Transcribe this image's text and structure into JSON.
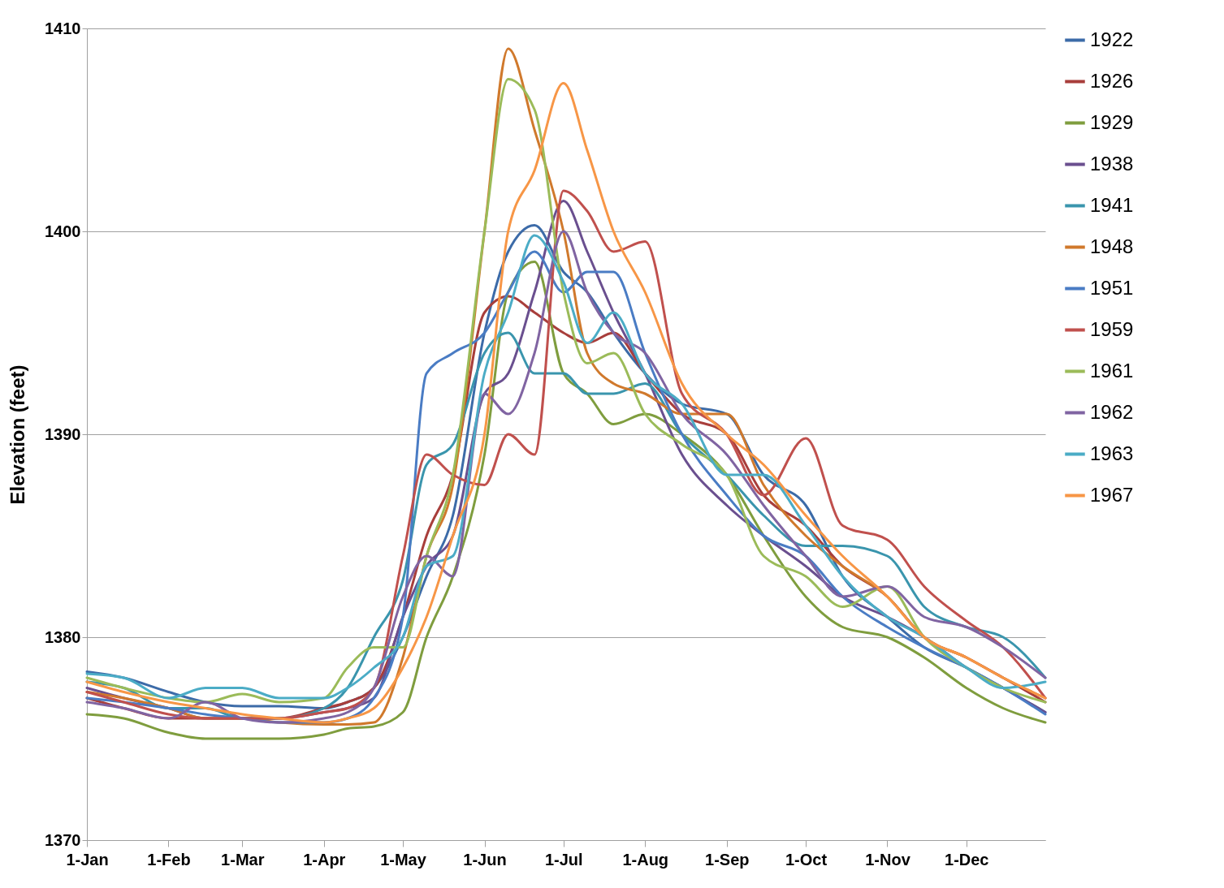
{
  "chart_data": {
    "type": "line",
    "ylabel": "Elevation  (feet)",
    "x": [
      "--01-01",
      "--01-15",
      "--02-01",
      "--02-15",
      "--03-01",
      "--03-15",
      "--04-01",
      "--04-10",
      "--04-20",
      "--05-01",
      "--05-10",
      "--05-20",
      "--06-01",
      "--06-10",
      "--06-20",
      "--07-01",
      "--07-10",
      "--07-20",
      "--08-01",
      "--08-15",
      "--09-01",
      "--09-15",
      "--10-01",
      "--10-15",
      "--11-01",
      "--11-15",
      "--12-01",
      "--12-15",
      "--12-31"
    ],
    "xlim": [
      "--01-01",
      "--12-31"
    ],
    "xticks": [
      {
        "value": "--01-01",
        "label": "1-Jan"
      },
      {
        "value": "--02-01",
        "label": "1-Feb"
      },
      {
        "value": "--03-01",
        "label": "1-Mar"
      },
      {
        "value": "--04-01",
        "label": "1-Apr"
      },
      {
        "value": "--05-01",
        "label": "1-May"
      },
      {
        "value": "--06-01",
        "label": "1-Jun"
      },
      {
        "value": "--07-01",
        "label": "1-Jul"
      },
      {
        "value": "--08-01",
        "label": "1-Aug"
      },
      {
        "value": "--09-01",
        "label": "1-Sep"
      },
      {
        "value": "--10-01",
        "label": "1-Oct"
      },
      {
        "value": "--11-01",
        "label": "1-Nov"
      },
      {
        "value": "--12-01",
        "label": "1-Dec"
      }
    ],
    "ylim": [
      1370,
      1410
    ],
    "yticks": [
      1370,
      1380,
      1390,
      1400,
      1410
    ],
    "grid": "y",
    "legend": "right",
    "marker": "none",
    "line_style": "solid",
    "series": [
      {
        "name": "1922",
        "color": "#3c6ba8",
        "values": [
          1378.3,
          1378,
          1377.3,
          1376.8,
          1376.6,
          1376.6,
          1376.5,
          1376.8,
          1377.5,
          1380,
          1383,
          1386,
          1395,
          1399,
          1400.3,
          1398,
          1397,
          1395,
          1393,
          1391.5,
          1391,
          1388,
          1386.5,
          1383,
          1381,
          1379.5,
          1378.5,
          1377.5,
          1376.3
        ]
      },
      {
        "name": "1926",
        "color": "#a83e3b",
        "values": [
          1377,
          1376.5,
          1376,
          1376,
          1376,
          1376,
          1376.5,
          1376.8,
          1377.5,
          1381,
          1385,
          1388,
          1396,
          1396.8,
          1396,
          1395,
          1394.5,
          1395,
          1393,
          1391,
          1390,
          1387,
          1385.5,
          1383.5,
          1382,
          1380,
          1379,
          1378,
          1376.8
        ]
      },
      {
        "name": "1929",
        "color": "#7f9d3e",
        "values": [
          1376.2,
          1376,
          1375.3,
          1375,
          1375,
          1375,
          1375.2,
          1375.5,
          1375.6,
          1376.3,
          1380,
          1383,
          1389,
          1397,
          1398.5,
          1393,
          1392,
          1390.5,
          1391,
          1390,
          1388,
          1385,
          1382,
          1380.5,
          1380,
          1379,
          1377.5,
          1376.5,
          1375.8
        ]
      },
      {
        "name": "1938",
        "color": "#6a4f8f",
        "values": [
          1377.5,
          1377,
          1376.5,
          1376,
          1376,
          1376,
          1376.3,
          1376.5,
          1377,
          1381,
          1383.5,
          1385,
          1392,
          1393,
          1397,
          1401.5,
          1399,
          1396,
          1393,
          1389,
          1386.5,
          1385,
          1383.5,
          1382,
          1381,
          1380,
          1378.5,
          1377.5,
          1376.3
        ]
      },
      {
        "name": "1941",
        "color": "#3a95ad",
        "values": [
          1377.8,
          1377.5,
          1376.5,
          1376.5,
          1376,
          1376,
          1376.5,
          1377.5,
          1380,
          1382.8,
          1388.5,
          1389.5,
          1394,
          1395,
          1393,
          1393,
          1392,
          1392,
          1392.5,
          1390,
          1388,
          1386,
          1384.5,
          1384.5,
          1384,
          1381.5,
          1380.5,
          1380,
          1378
        ]
      },
      {
        "name": "1948",
        "color": "#d0792c",
        "values": [
          1377.3,
          1377,
          1376.5,
          1376,
          1376,
          1375.8,
          1375.7,
          1375.7,
          1375.8,
          1379,
          1384,
          1387.5,
          1400,
          1409,
          1405,
          1400,
          1394,
          1392.5,
          1392,
          1391,
          1391,
          1387.5,
          1385,
          1383.5,
          1382,
          1380,
          1379,
          1378,
          1377
        ]
      },
      {
        "name": "1951",
        "color": "#4a7cc4",
        "values": [
          1377,
          1376.8,
          1376.5,
          1376.2,
          1376,
          1375.8,
          1375.8,
          1376,
          1377,
          1381,
          1393,
          1394,
          1395,
          1397,
          1399,
          1397,
          1398,
          1398,
          1394,
          1390,
          1387,
          1385,
          1384,
          1382,
          1380.5,
          1379.5,
          1378.5,
          1377.5,
          1376.2
        ]
      },
      {
        "name": "1959",
        "color": "#c0504d",
        "values": [
          1377.3,
          1376.8,
          1376.2,
          1376,
          1376,
          1376,
          1376.3,
          1376.5,
          1377.5,
          1384,
          1389,
          1388,
          1387.5,
          1390,
          1389,
          1402,
          1401,
          1399,
          1399.5,
          1392,
          1390,
          1387,
          1389.8,
          1385.5,
          1384.8,
          1382.5,
          1380.8,
          1379.5,
          1377
        ]
      },
      {
        "name": "1961",
        "color": "#9bbb59",
        "values": [
          1378,
          1377.5,
          1377,
          1376.8,
          1377.2,
          1376.8,
          1377,
          1378.5,
          1379.5,
          1379.5,
          1384,
          1388,
          1400,
          1407.5,
          1406,
          1397,
          1393.5,
          1394,
          1391,
          1389.5,
          1388,
          1384,
          1383,
          1381.5,
          1382.5,
          1380,
          1378.5,
          1377.5,
          1376.8
        ]
      },
      {
        "name": "1962",
        "color": "#8064a2",
        "values": [
          1376.8,
          1376.5,
          1376,
          1376.8,
          1376,
          1375.8,
          1376,
          1376.3,
          1377.5,
          1382,
          1384,
          1383,
          1392,
          1391,
          1394,
          1400,
          1397,
          1395,
          1394,
          1391,
          1389,
          1386.5,
          1384,
          1382,
          1382.5,
          1381,
          1380.5,
          1379.5,
          1378
        ]
      },
      {
        "name": "1963",
        "color": "#4bacc6",
        "values": [
          1378.2,
          1378,
          1377,
          1377.5,
          1377.5,
          1377,
          1377,
          1377.5,
          1378.5,
          1380,
          1383.5,
          1384,
          1393,
          1396,
          1399.8,
          1397.5,
          1394.5,
          1396,
          1393,
          1391.5,
          1388,
          1388,
          1385.5,
          1383,
          1381,
          1380,
          1378.5,
          1377.5,
          1377.8
        ]
      },
      {
        "name": "1967",
        "color": "#f79646",
        "values": [
          1377.8,
          1377.3,
          1376.8,
          1376.5,
          1376.2,
          1376,
          1375.8,
          1376,
          1376.5,
          1378.5,
          1381,
          1385,
          1390,
          1400,
          1403,
          1407.3,
          1404,
          1400,
          1397,
          1392.5,
          1390,
          1388.5,
          1386,
          1384,
          1382,
          1380,
          1379,
          1378,
          1377
        ]
      }
    ]
  }
}
